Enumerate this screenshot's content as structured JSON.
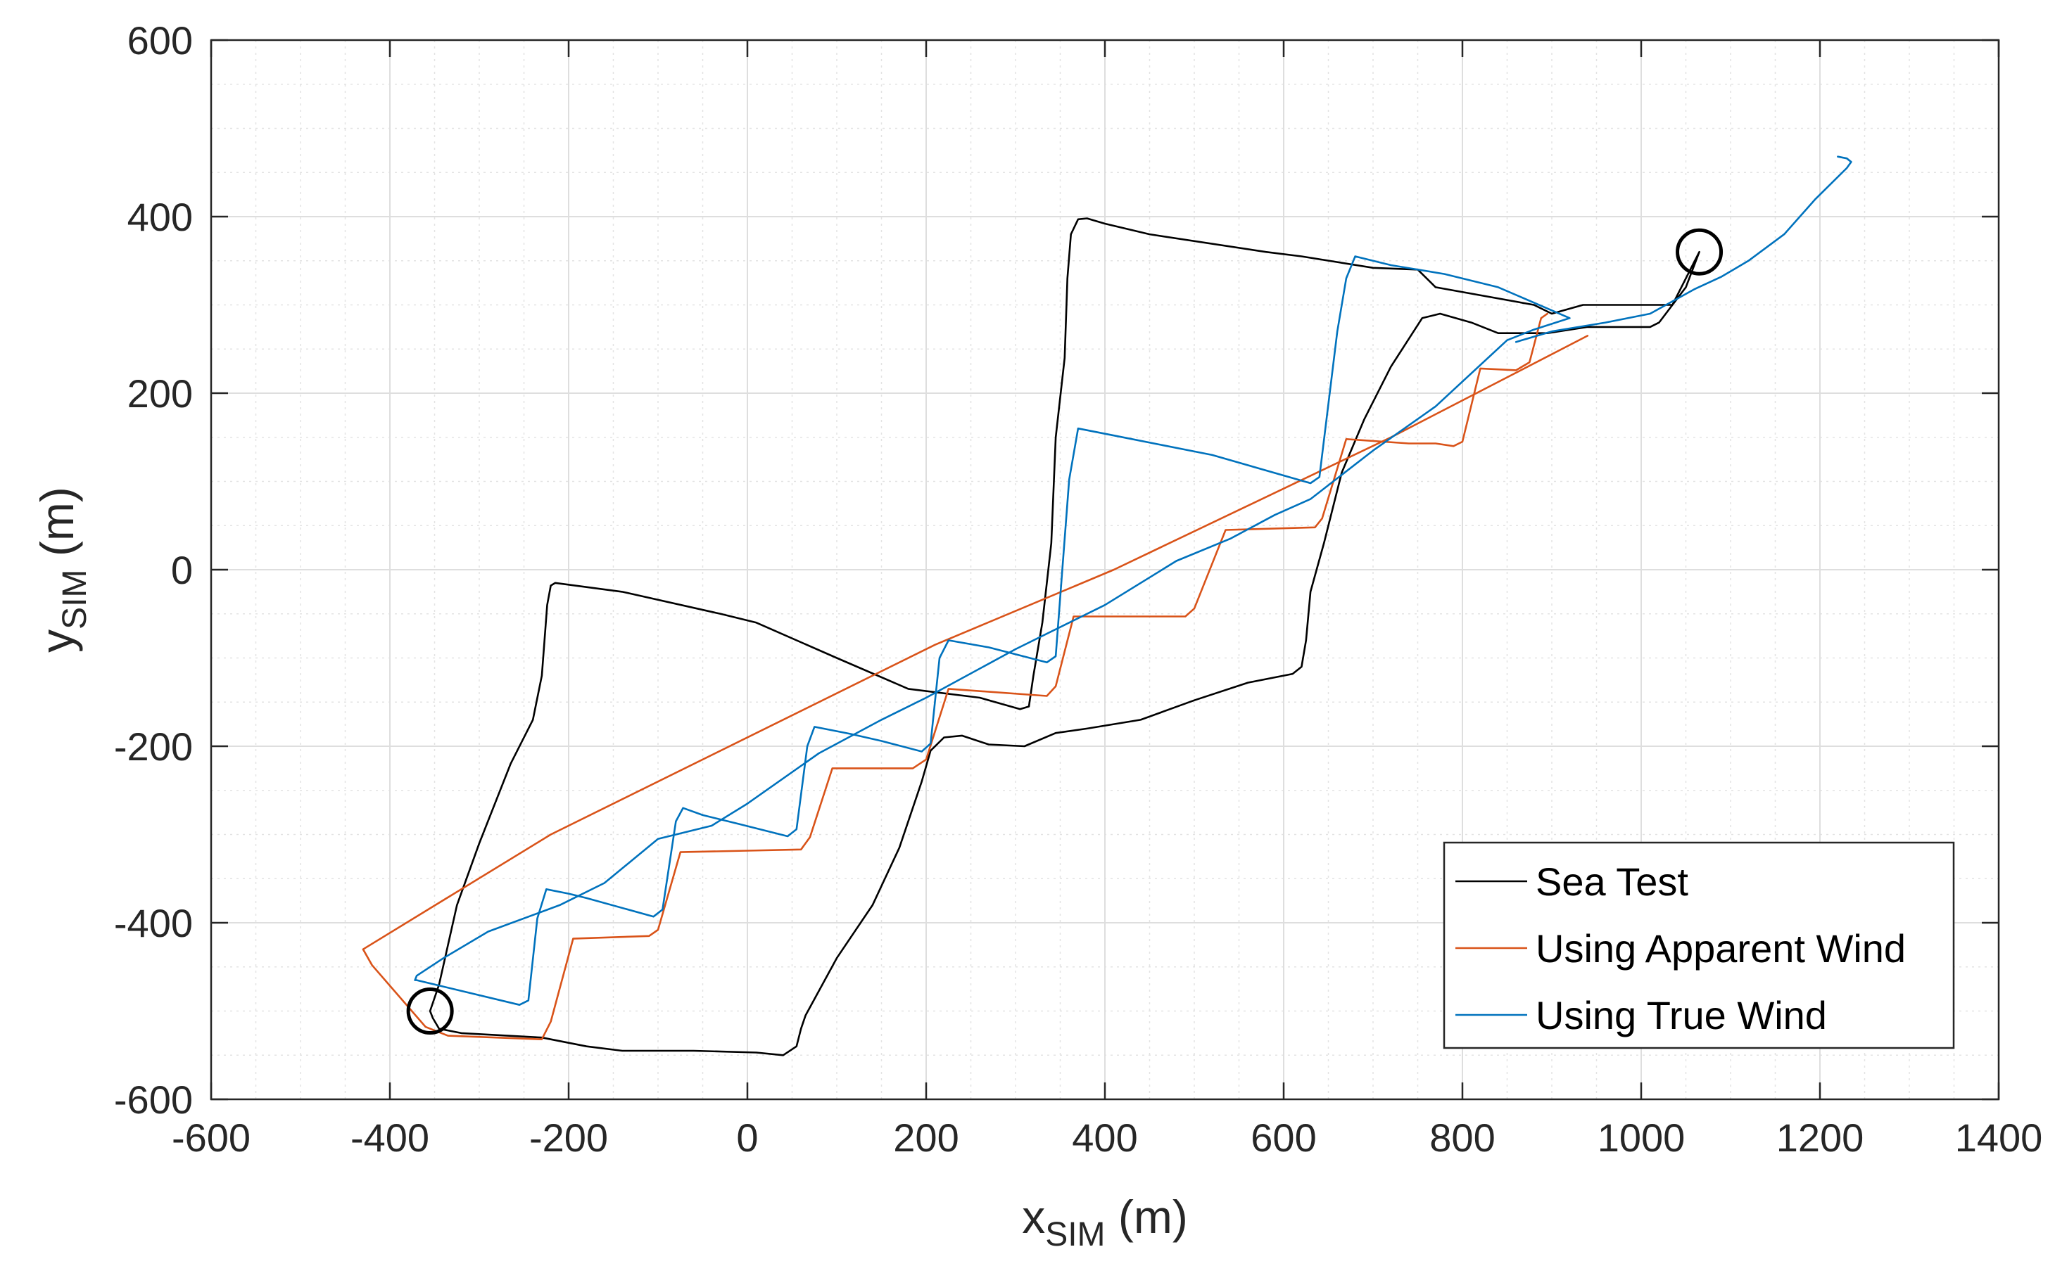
{
  "chart_data": {
    "type": "line",
    "xlabel": {
      "main": "x",
      "sub": "SIM",
      "unit": " (m)"
    },
    "ylabel": {
      "main": "y",
      "sub": "SIM",
      "unit": " (m)"
    },
    "xlim": [
      -600,
      1400
    ],
    "ylim": [
      -600,
      600
    ],
    "xticks": [
      -600,
      -400,
      -200,
      0,
      200,
      400,
      600,
      800,
      1000,
      1200,
      1400
    ],
    "yticks": [
      -600,
      -400,
      -200,
      0,
      200,
      400,
      600
    ],
    "grid": true,
    "minor_grid": true,
    "legend_position": "bottom-right",
    "colors": {
      "sea": "#000000",
      "apparent": "#d95319",
      "true": "#0072bd",
      "axis": "#262626",
      "grid": "#e3e3e3"
    },
    "markers": [
      {
        "type": "circle",
        "x": -355,
        "y": -500
      },
      {
        "type": "circle",
        "x": 1065,
        "y": 360
      }
    ],
    "series": [
      {
        "name": "Sea Test",
        "color": "#000000",
        "points": [
          [
            -355,
            -500
          ],
          [
            -352,
            -508
          ],
          [
            -345,
            -520
          ],
          [
            -320,
            -525
          ],
          [
            -230,
            -530
          ],
          [
            -180,
            -540
          ],
          [
            -140,
            -545
          ],
          [
            -60,
            -545
          ],
          [
            10,
            -547
          ],
          [
            40,
            -550
          ],
          [
            55,
            -540
          ],
          [
            60,
            -520
          ],
          [
            65,
            -505
          ],
          [
            100,
            -440
          ],
          [
            140,
            -380
          ],
          [
            170,
            -315
          ],
          [
            195,
            -240
          ],
          [
            205,
            -205
          ],
          [
            220,
            -190
          ],
          [
            240,
            -188
          ],
          [
            270,
            -198
          ],
          [
            310,
            -200
          ],
          [
            345,
            -185
          ],
          [
            380,
            -180
          ],
          [
            440,
            -170
          ],
          [
            500,
            -148
          ],
          [
            560,
            -128
          ],
          [
            610,
            -118
          ],
          [
            620,
            -110
          ],
          [
            625,
            -80
          ],
          [
            630,
            -25
          ],
          [
            645,
            30
          ],
          [
            665,
            110
          ],
          [
            690,
            170
          ],
          [
            720,
            230
          ],
          [
            755,
            285
          ],
          [
            775,
            290
          ],
          [
            810,
            280
          ],
          [
            840,
            268
          ],
          [
            895,
            268
          ],
          [
            940,
            275
          ],
          [
            1010,
            275
          ],
          [
            1020,
            280
          ],
          [
            1050,
            320
          ],
          [
            1065,
            360
          ],
          [
            1055,
            340
          ],
          [
            1035,
            300
          ],
          [
            935,
            300
          ],
          [
            900,
            290
          ],
          [
            880,
            300
          ],
          [
            770,
            320
          ],
          [
            750,
            340
          ],
          [
            700,
            342
          ],
          [
            620,
            355
          ],
          [
            580,
            360
          ],
          [
            450,
            380
          ],
          [
            400,
            392
          ],
          [
            380,
            398
          ],
          [
            370,
            397
          ],
          [
            362,
            380
          ],
          [
            358,
            330
          ],
          [
            355,
            240
          ],
          [
            345,
            150
          ],
          [
            340,
            30
          ],
          [
            330,
            -60
          ],
          [
            320,
            -120
          ],
          [
            315,
            -155
          ],
          [
            305,
            -158
          ],
          [
            260,
            -145
          ],
          [
            180,
            -135
          ],
          [
            100,
            -100
          ],
          [
            10,
            -60
          ],
          [
            -30,
            -50
          ],
          [
            -140,
            -25
          ],
          [
            -215,
            -15
          ],
          [
            -220,
            -18
          ],
          [
            -224,
            -40
          ],
          [
            -230,
            -120
          ],
          [
            -240,
            -170
          ],
          [
            -265,
            -220
          ],
          [
            -300,
            -310
          ],
          [
            -325,
            -380
          ],
          [
            -345,
            -470
          ],
          [
            -355,
            -500
          ]
        ]
      },
      {
        "name": "Using Apparent Wind",
        "color": "#d95319",
        "points": [
          [
            940,
            265
          ],
          [
            720,
            150
          ],
          [
            410,
            0
          ],
          [
            210,
            -85
          ],
          [
            -220,
            -300
          ],
          [
            -430,
            -430
          ],
          [
            -420,
            -448
          ],
          [
            -360,
            -518
          ],
          [
            -335,
            -528
          ],
          [
            -230,
            -532
          ],
          [
            -220,
            -512
          ],
          [
            -195,
            -418
          ],
          [
            -110,
            -415
          ],
          [
            -100,
            -408
          ],
          [
            -75,
            -320
          ],
          [
            60,
            -317
          ],
          [
            70,
            -303
          ],
          [
            95,
            -225
          ],
          [
            185,
            -225
          ],
          [
            200,
            -215
          ],
          [
            225,
            -135
          ],
          [
            335,
            -143
          ],
          [
            345,
            -132
          ],
          [
            365,
            -53
          ],
          [
            490,
            -53
          ],
          [
            500,
            -44
          ],
          [
            535,
            45
          ],
          [
            635,
            48
          ],
          [
            643,
            58
          ],
          [
            670,
            148
          ],
          [
            740,
            143
          ],
          [
            770,
            143
          ],
          [
            790,
            140
          ],
          [
            800,
            145
          ],
          [
            820,
            228
          ],
          [
            860,
            226
          ],
          [
            875,
            235
          ],
          [
            888,
            285
          ],
          [
            895,
            290
          ]
        ]
      },
      {
        "name": "Using True Wind",
        "color": "#0072bd",
        "points": [
          [
            -370,
            -465
          ],
          [
            -255,
            -493
          ],
          [
            -245,
            -488
          ],
          [
            -235,
            -395
          ],
          [
            -225,
            -362
          ],
          [
            -200,
            -367
          ],
          [
            -180,
            -372
          ],
          [
            -105,
            -393
          ],
          [
            -95,
            -385
          ],
          [
            -80,
            -285
          ],
          [
            -72,
            -270
          ],
          [
            -50,
            -278
          ],
          [
            -10,
            -288
          ],
          [
            45,
            -302
          ],
          [
            55,
            -294
          ],
          [
            67,
            -200
          ],
          [
            75,
            -178
          ],
          [
            115,
            -186
          ],
          [
            150,
            -194
          ],
          [
            195,
            -206
          ],
          [
            205,
            -197
          ],
          [
            215,
            -100
          ],
          [
            225,
            -80
          ],
          [
            270,
            -88
          ],
          [
            335,
            -105
          ],
          [
            345,
            -98
          ],
          [
            360,
            102
          ],
          [
            370,
            160
          ],
          [
            410,
            152
          ],
          [
            520,
            130
          ],
          [
            630,
            98
          ],
          [
            640,
            105
          ],
          [
            660,
            270
          ],
          [
            670,
            330
          ],
          [
            680,
            355
          ],
          [
            720,
            345
          ],
          [
            780,
            335
          ],
          [
            840,
            320
          ],
          [
            920,
            285
          ],
          [
            880,
            272
          ],
          [
            850,
            260
          ],
          [
            770,
            185
          ],
          [
            700,
            135
          ],
          [
            630,
            80
          ],
          [
            590,
            62
          ],
          [
            540,
            35
          ],
          [
            480,
            10
          ],
          [
            400,
            -40
          ],
          [
            300,
            -90
          ],
          [
            200,
            -145
          ],
          [
            150,
            -170
          ],
          [
            80,
            -208
          ],
          [
            0,
            -265
          ],
          [
            -40,
            -290
          ],
          [
            -100,
            -305
          ],
          [
            -160,
            -355
          ],
          [
            -210,
            -380
          ],
          [
            -290,
            -410
          ],
          [
            -340,
            -440
          ],
          [
            -370,
            -460
          ],
          [
            -372,
            -465
          ],
          [
            -370,
            -465
          ]
        ]
      },
      {
        "name": "",
        "color": "#0072bd",
        "points": [
          [
            860,
            258
          ],
          [
            900,
            270
          ],
          [
            960,
            280
          ],
          [
            1010,
            290
          ],
          [
            1060,
            318
          ],
          [
            1090,
            332
          ],
          [
            1120,
            350
          ],
          [
            1160,
            380
          ],
          [
            1195,
            420
          ],
          [
            1230,
            455
          ],
          [
            1235,
            462
          ],
          [
            1230,
            466
          ],
          [
            1220,
            468
          ]
        ]
      }
    ]
  },
  "legend": {
    "items": [
      {
        "key": "sea",
        "label": "Sea Test",
        "color": "#000000"
      },
      {
        "key": "apparent",
        "label": "Using Apparent Wind",
        "color": "#d95319"
      },
      {
        "key": "true",
        "label": "Using True Wind",
        "color": "#0072bd"
      }
    ]
  }
}
